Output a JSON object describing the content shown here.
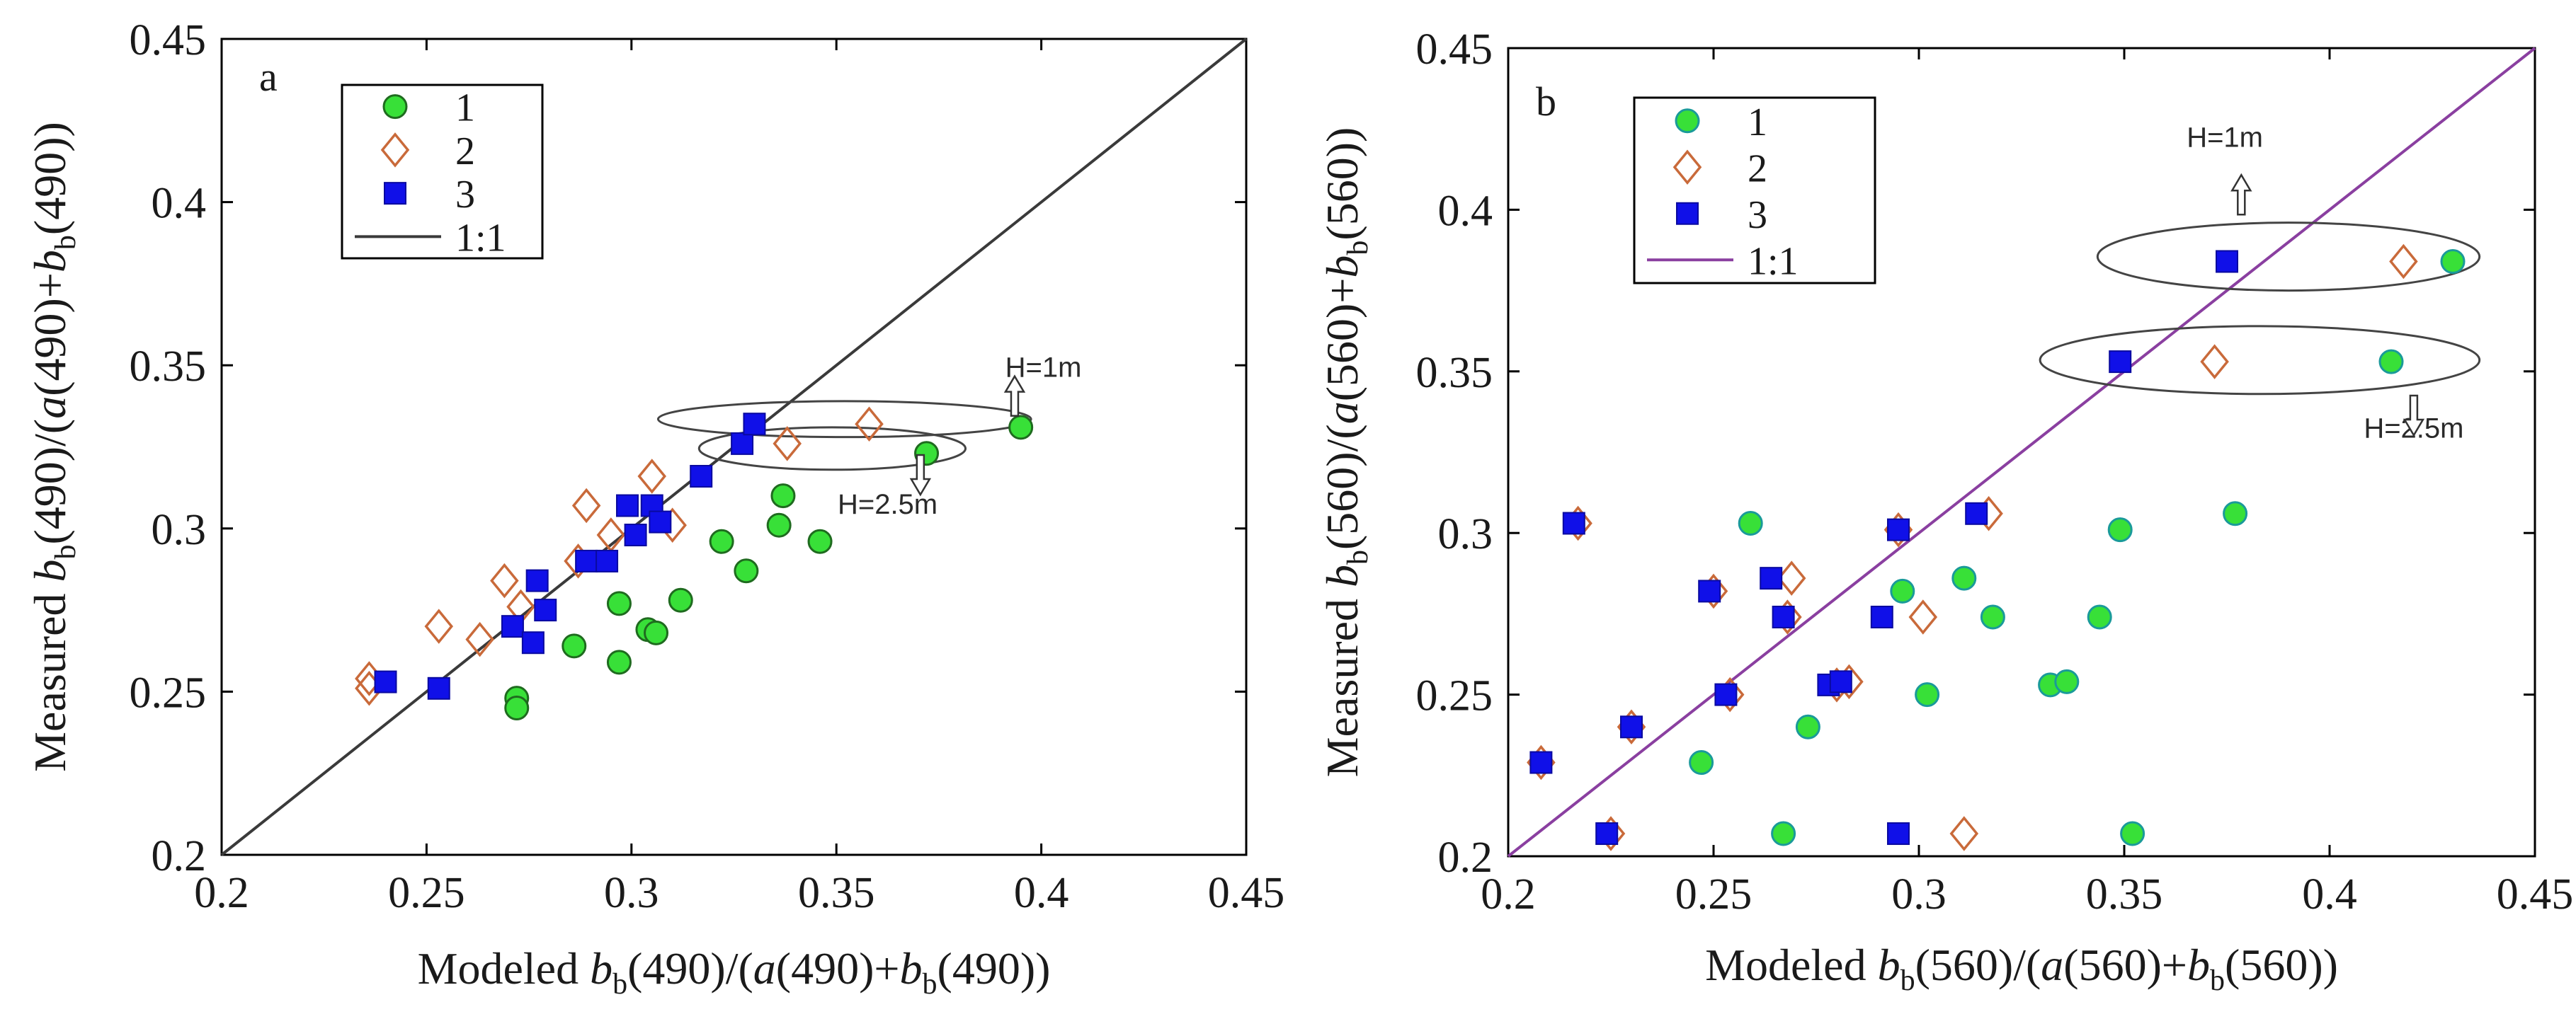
{
  "chart_data": [
    {
      "panel_label": "a",
      "type": "scatter",
      "xlim": [
        0.2,
        0.45
      ],
      "ylim": [
        0.2,
        0.45
      ],
      "xticks": [
        "0.2",
        "0.25",
        "0.3",
        "0.35",
        "0.4",
        "0.45"
      ],
      "yticks": [
        "0.2",
        "0.25",
        "0.3",
        "0.35",
        "0.4",
        "0.45"
      ],
      "xlabel": {
        "pre": "Modeled ",
        "b1": "b",
        "sub1": "b",
        "mid": "(490)/(",
        "a": "a",
        "mid2": "(490)+",
        "b2": "b",
        "sub2": "b",
        "post": "(490))"
      },
      "ylabel": {
        "pre": "Measured ",
        "b1": "b",
        "sub1": "b",
        "mid": "(490)/(",
        "a": "a",
        "mid2": "(490)+",
        "b2": "b",
        "sub2": "b",
        "post": "(490))"
      },
      "line_color": "#3a3a3a",
      "legend": [
        {
          "label": "1",
          "marker": "circle",
          "fill": "#38e038",
          "stroke": "#1f6b1f"
        },
        {
          "label": "2",
          "marker": "diamond",
          "fill": "none",
          "stroke": "#c96a3a"
        },
        {
          "label": "3",
          "marker": "square",
          "fill": "#1010e8",
          "stroke": "#0a0aa0"
        },
        {
          "label": "1:1",
          "marker": "line",
          "stroke": "#3a3a3a"
        }
      ],
      "series": [
        {
          "name": "1",
          "points": [
            [
              0.272,
              0.248
            ],
            [
              0.272,
              0.245
            ],
            [
              0.286,
              0.264
            ],
            [
              0.297,
              0.259
            ],
            [
              0.297,
              0.277
            ],
            [
              0.304,
              0.269
            ],
            [
              0.306,
              0.268
            ],
            [
              0.312,
              0.278
            ],
            [
              0.322,
              0.296
            ],
            [
              0.328,
              0.287
            ],
            [
              0.336,
              0.301
            ],
            [
              0.337,
              0.31
            ],
            [
              0.346,
              0.296
            ],
            [
              0.372,
              0.323
            ],
            [
              0.395,
              0.331
            ]
          ]
        },
        {
          "name": "2",
          "points": [
            [
              0.236,
              0.254
            ],
            [
              0.236,
              0.251
            ],
            [
              0.253,
              0.27
            ],
            [
              0.263,
              0.266
            ],
            [
              0.269,
              0.284
            ],
            [
              0.273,
              0.276
            ],
            [
              0.287,
              0.29
            ],
            [
              0.289,
              0.307
            ],
            [
              0.295,
              0.298
            ],
            [
              0.305,
              0.316
            ],
            [
              0.31,
              0.301
            ],
            [
              0.338,
              0.326
            ],
            [
              0.358,
              0.332
            ]
          ]
        },
        {
          "name": "3",
          "points": [
            [
              0.24,
              0.253
            ],
            [
              0.253,
              0.251
            ],
            [
              0.271,
              0.27
            ],
            [
              0.276,
              0.265
            ],
            [
              0.277,
              0.284
            ],
            [
              0.279,
              0.275
            ],
            [
              0.289,
              0.29
            ],
            [
              0.294,
              0.29
            ],
            [
              0.299,
              0.307
            ],
            [
              0.301,
              0.298
            ],
            [
              0.305,
              0.307
            ],
            [
              0.307,
              0.302
            ],
            [
              0.317,
              0.316
            ],
            [
              0.327,
              0.326
            ],
            [
              0.33,
              0.332
            ]
          ]
        }
      ],
      "ellipses": [
        {
          "cx": 0.352,
          "cy": 0.3335,
          "rx": 0.0455,
          "ry": 0.0055
        },
        {
          "cx": 0.349,
          "cy": 0.3245,
          "rx": 0.0325,
          "ry": 0.0065
        }
      ],
      "annotations": [
        {
          "text": "H=1m",
          "x": 0.4005,
          "y": 0.3465,
          "arrow": "up",
          "ax": 0.3935,
          "ay": 0.3345
        },
        {
          "text": "H=2.5m",
          "x": 0.3625,
          "y": 0.3045,
          "arrow": "down",
          "ax": 0.3705,
          "ay": 0.3225
        }
      ]
    },
    {
      "panel_label": "b",
      "type": "scatter",
      "xlim": [
        0.2,
        0.45
      ],
      "ylim": [
        0.2,
        0.45
      ],
      "xticks": [
        "0.2",
        "0.25",
        "0.3",
        "0.35",
        "0.4",
        "0.45"
      ],
      "yticks": [
        "0.2",
        "0.25",
        "0.3",
        "0.35",
        "0.4",
        "0.45"
      ],
      "xlabel": {
        "pre": "Modeled ",
        "b1": "b",
        "sub1": "b",
        "mid": "(560)/(",
        "a": "a",
        "mid2": "(560)+",
        "b2": "b",
        "sub2": "b",
        "post": "(560))"
      },
      "ylabel": {
        "pre": "Measured ",
        "b1": "b",
        "sub1": "b",
        "mid": "(560)/(",
        "a": "a",
        "mid2": "(560)+",
        "b2": "b",
        "sub2": "b",
        "post": "(560))"
      },
      "line_color": "#8a3fa0",
      "legend": [
        {
          "label": "1",
          "marker": "circle",
          "fill": "#38e038",
          "stroke": "#1a9a9a"
        },
        {
          "label": "2",
          "marker": "diamond",
          "fill": "none",
          "stroke": "#c96a3a"
        },
        {
          "label": "3",
          "marker": "square",
          "fill": "#1010e8",
          "stroke": "#0a0aa0"
        },
        {
          "label": "1:1",
          "marker": "line",
          "stroke": "#8a3fa0"
        }
      ],
      "series": [
        {
          "name": "1",
          "points": [
            [
              0.247,
              0.229
            ],
            [
              0.259,
              0.303
            ],
            [
              0.267,
              0.207
            ],
            [
              0.273,
              0.24
            ],
            [
              0.296,
              0.282
            ],
            [
              0.302,
              0.25
            ],
            [
              0.311,
              0.286
            ],
            [
              0.318,
              0.274
            ],
            [
              0.332,
              0.253
            ],
            [
              0.336,
              0.254
            ],
            [
              0.344,
              0.274
            ],
            [
              0.349,
              0.301
            ],
            [
              0.352,
              0.207
            ],
            [
              0.377,
              0.306
            ],
            [
              0.415,
              0.353
            ],
            [
              0.43,
              0.384
            ]
          ]
        },
        {
          "name": "2",
          "points": [
            [
              0.208,
              0.229
            ],
            [
              0.217,
              0.303
            ],
            [
              0.225,
              0.207
            ],
            [
              0.23,
              0.24
            ],
            [
              0.25,
              0.282
            ],
            [
              0.254,
              0.25
            ],
            [
              0.269,
              0.286
            ],
            [
              0.268,
              0.274
            ],
            [
              0.28,
              0.253
            ],
            [
              0.283,
              0.254
            ],
            [
              0.295,
              0.301
            ],
            [
              0.301,
              0.274
            ],
            [
              0.311,
              0.207
            ],
            [
              0.317,
              0.306
            ],
            [
              0.372,
              0.353
            ],
            [
              0.418,
              0.384
            ]
          ]
        },
        {
          "name": "3",
          "points": [
            [
              0.208,
              0.229
            ],
            [
              0.216,
              0.303
            ],
            [
              0.224,
              0.207
            ],
            [
              0.23,
              0.24
            ],
            [
              0.249,
              0.282
            ],
            [
              0.253,
              0.25
            ],
            [
              0.264,
              0.286
            ],
            [
              0.267,
              0.274
            ],
            [
              0.278,
              0.253
            ],
            [
              0.281,
              0.254
            ],
            [
              0.291,
              0.274
            ],
            [
              0.295,
              0.301
            ],
            [
              0.295,
              0.207
            ],
            [
              0.314,
              0.306
            ],
            [
              0.349,
              0.353
            ],
            [
              0.375,
              0.384
            ]
          ]
        }
      ],
      "ellipses": [
        {
          "cx": 0.39,
          "cy": 0.3855,
          "rx": 0.0465,
          "ry": 0.0105
        },
        {
          "cx": 0.383,
          "cy": 0.3535,
          "rx": 0.0535,
          "ry": 0.0105
        }
      ],
      "annotations": [
        {
          "text": "H=1m",
          "x": 0.3745,
          "y": 0.4195,
          "arrow": "up",
          "ax": 0.3785,
          "ay": 0.3985
        },
        {
          "text": "H=2.5m",
          "x": 0.4205,
          "y": 0.3295,
          "arrow": "down",
          "ax": 0.4205,
          "ay": 0.3425
        }
      ]
    }
  ]
}
